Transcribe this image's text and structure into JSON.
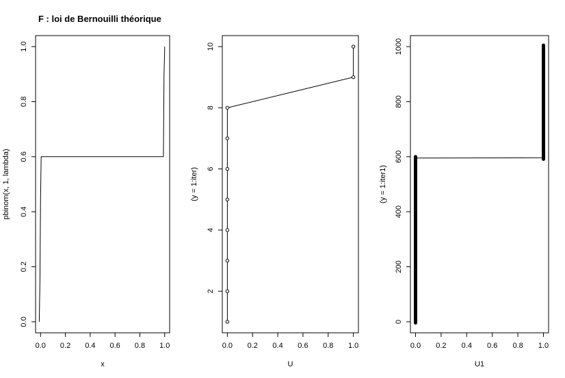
{
  "chart_data": [
    {
      "type": "line",
      "title": "F : loi de Bernouilli théorique",
      "xlabel": "x",
      "ylabel": "pbinom(x, 1, lambda)",
      "xlim": [
        -0.04,
        1.04
      ],
      "ylim": [
        -0.04,
        1.04
      ],
      "x_ticks": [
        0.0,
        0.2,
        0.4,
        0.6,
        0.8,
        1.0
      ],
      "x_tick_labels": [
        "0.0",
        "0.2",
        "0.4",
        "0.6",
        "0.8",
        "1.0"
      ],
      "y_ticks": [
        0.0,
        0.2,
        0.4,
        0.6,
        0.8,
        1.0
      ],
      "y_tick_labels": [
        "0.0",
        "0.2",
        "0.4",
        "0.6",
        "0.8",
        "1.0"
      ],
      "series": [
        {
          "style": "line",
          "x": [
            -0.01,
            -0.005,
            0.0,
            0.005,
            0.99,
            0.995,
            1.0,
            1.0
          ],
          "y": [
            0.0,
            0.15,
            0.45,
            0.6,
            0.6,
            0.9,
            0.98,
            1.0
          ]
        }
      ]
    },
    {
      "type": "line",
      "title": "",
      "xlabel": "U",
      "ylabel": "(y = 1:iter)",
      "xlim": [
        -0.04,
        1.04
      ],
      "ylim": [
        0.64,
        10.36
      ],
      "x_ticks": [
        0.0,
        0.2,
        0.4,
        0.6,
        0.8,
        1.0
      ],
      "x_tick_labels": [
        "0.0",
        "0.2",
        "0.4",
        "0.6",
        "0.8",
        "1.0"
      ],
      "y_ticks": [
        2,
        4,
        6,
        8,
        10
      ],
      "y_tick_labels": [
        "2",
        "4",
        "6",
        "8",
        "10"
      ],
      "series": [
        {
          "style": "line+points",
          "x": [
            0,
            0,
            0,
            0,
            0,
            0,
            0,
            0,
            1,
            1
          ],
          "y": [
            1,
            2,
            3,
            4,
            5,
            6,
            7,
            8,
            9,
            10
          ]
        }
      ]
    },
    {
      "type": "line",
      "title": "",
      "xlabel": "U1",
      "ylabel": "(y = 1:iter1)",
      "xlim": [
        -0.04,
        1.04
      ],
      "ylim": [
        -40,
        1040
      ],
      "x_ticks": [
        0.0,
        0.2,
        0.4,
        0.6,
        0.8,
        1.0
      ],
      "x_tick_labels": [
        "0.0",
        "0.2",
        "0.4",
        "0.6",
        "0.8",
        "1.0"
      ],
      "y_ticks": [
        0,
        200,
        400,
        600,
        800,
        1000
      ],
      "y_tick_labels": [
        "0",
        "200",
        "400",
        "600",
        "800",
        "1000"
      ],
      "series": [
        {
          "style": "line+dense-points",
          "x": [
            0,
            0,
            1,
            1
          ],
          "y": [
            1,
            595,
            596,
            1000
          ]
        }
      ]
    }
  ]
}
